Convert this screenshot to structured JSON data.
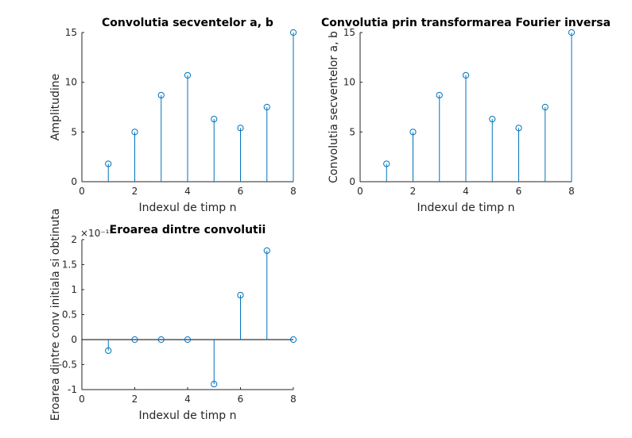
{
  "colors": {
    "series": "#0072BD",
    "axis": "#262626"
  },
  "chart_data": [
    {
      "type": "stem",
      "title": "Convolutia secventelor a, b",
      "xlabel": "Indexul de timp n",
      "ylabel": "Amplitudine",
      "xlim": [
        0,
        8
      ],
      "ylim": [
        0,
        15
      ],
      "xticks": [
        "0",
        "2",
        "4",
        "6",
        "8"
      ],
      "yticks": [
        "0",
        "5",
        "10",
        "15"
      ],
      "exponent": "",
      "x": [
        1,
        2,
        3,
        4,
        5,
        6,
        7,
        8
      ],
      "values": [
        1.8,
        5.0,
        8.7,
        10.7,
        6.3,
        5.4,
        7.5,
        15.0
      ]
    },
    {
      "type": "stem",
      "title": "Convolutia prin transformarea Fourier inversa",
      "xlabel": "Indexul de timp n",
      "ylabel": "Convolutia secventelor a, b",
      "xlim": [
        0,
        8
      ],
      "ylim": [
        0,
        15
      ],
      "xticks": [
        "0",
        "2",
        "4",
        "6",
        "8"
      ],
      "yticks": [
        "0",
        "5",
        "10",
        "15"
      ],
      "exponent": "",
      "x": [
        1,
        2,
        3,
        4,
        5,
        6,
        7,
        8
      ],
      "values": [
        1.8,
        5.0,
        8.7,
        10.7,
        6.3,
        5.4,
        7.5,
        15.0
      ]
    },
    {
      "type": "stem",
      "title": "Eroarea dintre convolutii",
      "xlabel": "Indexul de timp n",
      "ylabel": "Eroarea dintre conv initiala si obtinuta",
      "xlim": [
        0,
        8
      ],
      "ylim": [
        -1,
        2
      ],
      "xticks": [
        "0",
        "2",
        "4",
        "6",
        "8"
      ],
      "yticks": [
        "-1",
        "-0.5",
        "0",
        "0.5",
        "1",
        "1.5",
        "2"
      ],
      "exponent": "×10⁻¹⁵",
      "x": [
        1,
        2,
        3,
        4,
        5,
        6,
        7,
        8
      ],
      "values": [
        -0.22,
        0,
        0,
        0,
        -0.89,
        0.89,
        1.78,
        0
      ]
    }
  ]
}
